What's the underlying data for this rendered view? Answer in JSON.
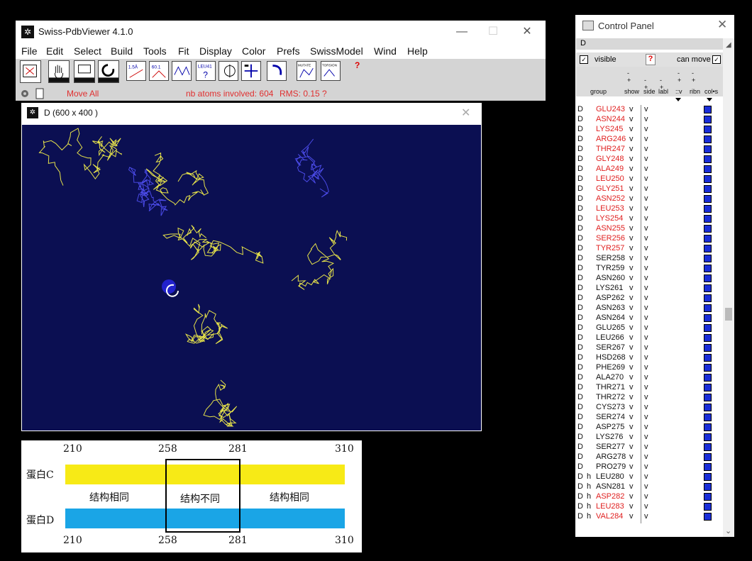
{
  "main_window": {
    "title": "Swiss-PdbViewer 4.1.0",
    "controls": {
      "minimize": "—",
      "maximize": "☐",
      "close": "✕"
    },
    "menu": [
      "File",
      "Edit",
      "Select",
      "Build",
      "Tools",
      "Fit",
      "Display",
      "Color",
      "Prefs",
      "SwissModel",
      "Wind",
      "Help"
    ],
    "toolbar": {
      "tools": [
        "reset-view",
        "move-hand",
        "zoom",
        "rotate",
        "distance-1.5A",
        "angle-60",
        "torsion",
        "label-residue",
        "center-atom",
        "fit-screen",
        "rotate-ca",
        "mutate",
        "torsion-side"
      ],
      "tool_texts": {
        "distance": "1.5Å",
        "angle": "60.1",
        "label": "LEU41",
        "mutate": "MUTATE",
        "torsion": "TORSION"
      },
      "help": "?"
    },
    "status": {
      "mode": "Move All",
      "nb_atoms": "nb atoms involved: 604",
      "rms": "RMS: 0.15 ?"
    }
  },
  "viewer": {
    "title": "D  (600 x 400 )",
    "close": "✕",
    "bg": "#0b0f52"
  },
  "diagram": {
    "top_ticks": [
      "210",
      "258",
      "281",
      "310"
    ],
    "bottom_ticks": [
      "210",
      "258",
      "281",
      "310"
    ],
    "protein_c": "蛋白C",
    "protein_d": "蛋白D",
    "seg_left": "结构相同",
    "seg_mid": "结构不同",
    "seg_right": "结构相同",
    "colors": {
      "c": "#f7ea16",
      "d": "#1aa5e6"
    }
  },
  "control_panel": {
    "title": "Control Panel",
    "close": "✕",
    "chain": "D",
    "visible_label": "visible",
    "can_move": "can move",
    "help": "?",
    "headers": {
      "group": "group",
      "show": "show",
      "side": "side",
      "labl": "labl",
      "v": "::v",
      "ribn": "ribn",
      "col": "col•s"
    },
    "rows": [
      {
        "res": "GLU243",
        "h": "",
        "red": true
      },
      {
        "res": "ASN244",
        "h": "",
        "red": true
      },
      {
        "res": "LYS245",
        "h": "",
        "red": true
      },
      {
        "res": "ARG246",
        "h": "",
        "red": true
      },
      {
        "res": "THR247",
        "h": "",
        "red": true
      },
      {
        "res": "GLY248",
        "h": "",
        "red": true
      },
      {
        "res": "ALA249",
        "h": "",
        "red": true
      },
      {
        "res": "LEU250",
        "h": "",
        "red": true
      },
      {
        "res": "GLY251",
        "h": "",
        "red": true
      },
      {
        "res": "ASN252",
        "h": "",
        "red": true
      },
      {
        "res": "LEU253",
        "h": "",
        "red": true
      },
      {
        "res": "LYS254",
        "h": "",
        "red": true
      },
      {
        "res": "ASN255",
        "h": "",
        "red": true
      },
      {
        "res": "SER256",
        "h": "",
        "red": true
      },
      {
        "res": "TYR257",
        "h": "",
        "red": true
      },
      {
        "res": "SER258",
        "h": "",
        "red": false
      },
      {
        "res": "TYR259",
        "h": "",
        "red": false
      },
      {
        "res": "ASN260",
        "h": "",
        "red": false
      },
      {
        "res": "LYS261",
        "h": "",
        "red": false
      },
      {
        "res": "ASP262",
        "h": "",
        "red": false
      },
      {
        "res": "ASN263",
        "h": "",
        "red": false
      },
      {
        "res": "ASN264",
        "h": "",
        "red": false
      },
      {
        "res": "GLU265",
        "h": "",
        "red": false
      },
      {
        "res": "LEU266",
        "h": "",
        "red": false
      },
      {
        "res": "SER267",
        "h": "",
        "red": false
      },
      {
        "res": "HSD268",
        "h": "",
        "red": false
      },
      {
        "res": "PHE269",
        "h": "",
        "red": false
      },
      {
        "res": "ALA270",
        "h": "",
        "red": false
      },
      {
        "res": "THR271",
        "h": "",
        "red": false
      },
      {
        "res": "THR272",
        "h": "",
        "red": false
      },
      {
        "res": "CYS273",
        "h": "",
        "red": false
      },
      {
        "res": "SER274",
        "h": "",
        "red": false
      },
      {
        "res": "ASP275",
        "h": "",
        "red": false
      },
      {
        "res": "LYS276",
        "h": "",
        "red": false
      },
      {
        "res": "SER277",
        "h": "",
        "red": false
      },
      {
        "res": "ARG278",
        "h": "",
        "red": false
      },
      {
        "res": "PRO279",
        "h": "",
        "red": false
      },
      {
        "res": "LEU280",
        "h": "h",
        "red": false
      },
      {
        "res": "ASN281",
        "h": "h",
        "red": false
      },
      {
        "res": "ASP282",
        "h": "h",
        "red": true
      },
      {
        "res": "LEU283",
        "h": "h",
        "red": true
      },
      {
        "res": "VAL284",
        "h": "h",
        "red": true
      }
    ],
    "row_chain": "D",
    "row_v": "v"
  }
}
